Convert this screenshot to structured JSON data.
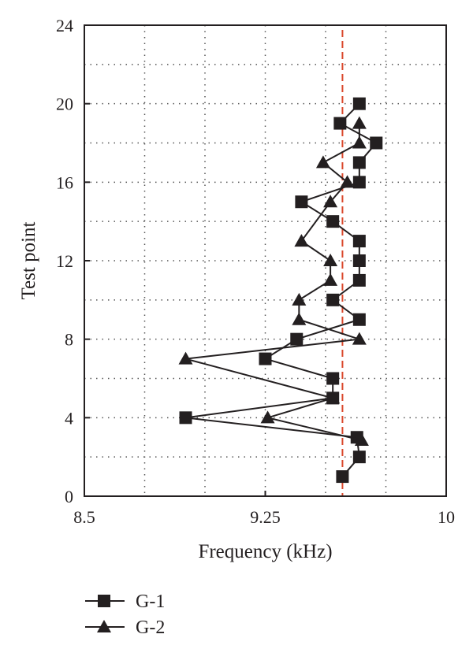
{
  "chart_data": {
    "type": "line",
    "title": "",
    "xlabel": "Frequency (kHz)",
    "ylabel": "Test point",
    "xlim": [
      8.5,
      10
    ],
    "ylim": [
      0,
      24
    ],
    "x_ticks": [
      "8.5",
      "9.25",
      "10"
    ],
    "y_ticks": [
      "0",
      "4",
      "8",
      "12",
      "16",
      "20",
      "24"
    ],
    "grid": true,
    "legend_position": "bottom-left",
    "reference_line": {
      "x": 9.57,
      "color": "#d9472b",
      "style": "dashed"
    },
    "series": [
      {
        "name": "G-1",
        "marker": "square",
        "color": "#231f20",
        "points": [
          {
            "x": 9.57,
            "y": 1
          },
          {
            "x": 9.64,
            "y": 2
          },
          {
            "x": 9.63,
            "y": 3
          },
          {
            "x": 8.92,
            "y": 4
          },
          {
            "x": 9.53,
            "y": 5
          },
          {
            "x": 9.53,
            "y": 6
          },
          {
            "x": 9.25,
            "y": 7
          },
          {
            "x": 9.38,
            "y": 8
          },
          {
            "x": 9.64,
            "y": 9
          },
          {
            "x": 9.53,
            "y": 10
          },
          {
            "x": 9.64,
            "y": 11
          },
          {
            "x": 9.64,
            "y": 12
          },
          {
            "x": 9.64,
            "y": 13
          },
          {
            "x": 9.53,
            "y": 14
          },
          {
            "x": 9.4,
            "y": 15
          },
          {
            "x": 9.64,
            "y": 16
          },
          {
            "x": 9.64,
            "y": 17
          },
          {
            "x": 9.71,
            "y": 18
          },
          {
            "x": 9.56,
            "y": 19
          },
          {
            "x": 9.64,
            "y": 20
          }
        ]
      },
      {
        "name": "G-2",
        "marker": "triangle",
        "color": "#231f20",
        "points": [
          {
            "x": 9.65,
            "y": 2.85
          },
          {
            "x": 9.26,
            "y": 4
          },
          {
            "x": 9.53,
            "y": 5
          },
          {
            "x": 8.92,
            "y": 7
          },
          {
            "x": 9.64,
            "y": 8
          },
          {
            "x": 9.39,
            "y": 9
          },
          {
            "x": 9.39,
            "y": 10
          },
          {
            "x": 9.52,
            "y": 11
          },
          {
            "x": 9.52,
            "y": 12
          },
          {
            "x": 9.4,
            "y": 13
          },
          {
            "x": 9.52,
            "y": 15
          },
          {
            "x": 9.59,
            "y": 16
          },
          {
            "x": 9.49,
            "y": 17
          },
          {
            "x": 9.64,
            "y": 18
          },
          {
            "x": 9.64,
            "y": 19
          }
        ]
      }
    ]
  }
}
